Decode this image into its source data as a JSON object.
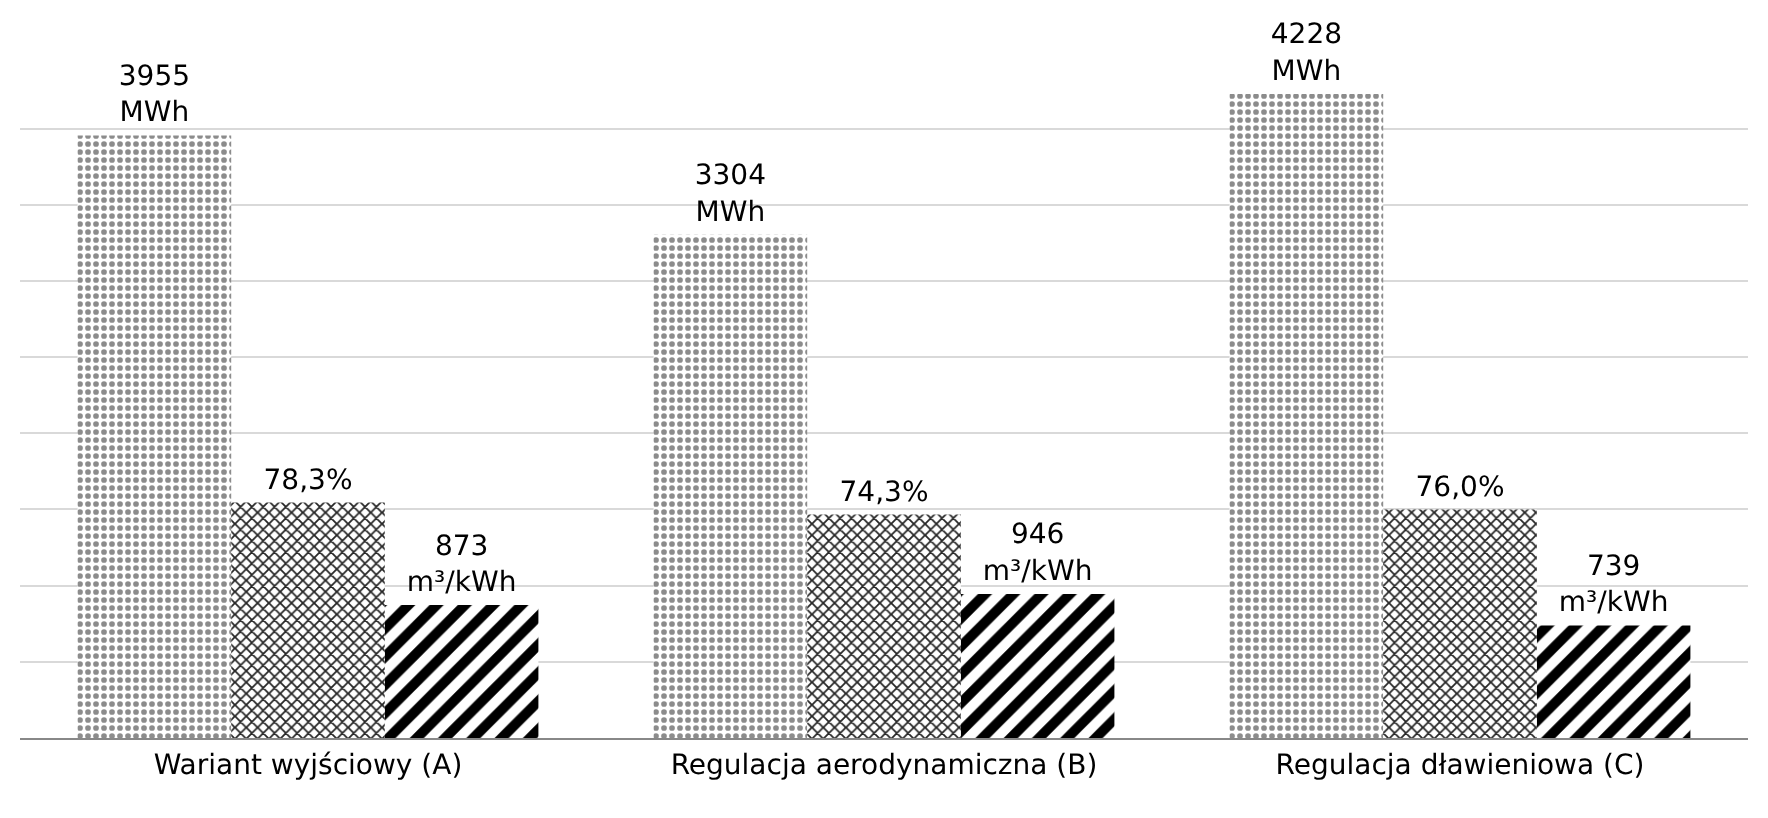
{
  "chart_data": {
    "type": "bar",
    "grid": "y",
    "tick_labels": "x",
    "categories": [
      "Wariant wyjściowy (A)",
      "Regulacja aerodynamiczna (B)",
      "Regulacja dławieniowa (C)"
    ],
    "series": [
      {
        "color": "#8c8c8c",
        "axis": "y",
        "values": [
          3955,
          3304,
          4228
        ],
        "value_labels": [
          "3955 MWh",
          "3304 MWh",
          "4228 MWh"
        ]
      },
      {
        "color": "#262626",
        "axis": "y2",
        "values": [
          78.3,
          74.3,
          76.0
        ],
        "value_labels": [
          "78,3%",
          "74,3%",
          "76,0%"
        ]
      },
      {
        "color": "#000000",
        "axis": "y",
        "values": [
          873,
          946,
          739
        ],
        "value_labels": [
          "873 m³/kWh",
          "946 m³/kWh",
          "739 m³/kWh"
        ]
      }
    ]
  }
}
